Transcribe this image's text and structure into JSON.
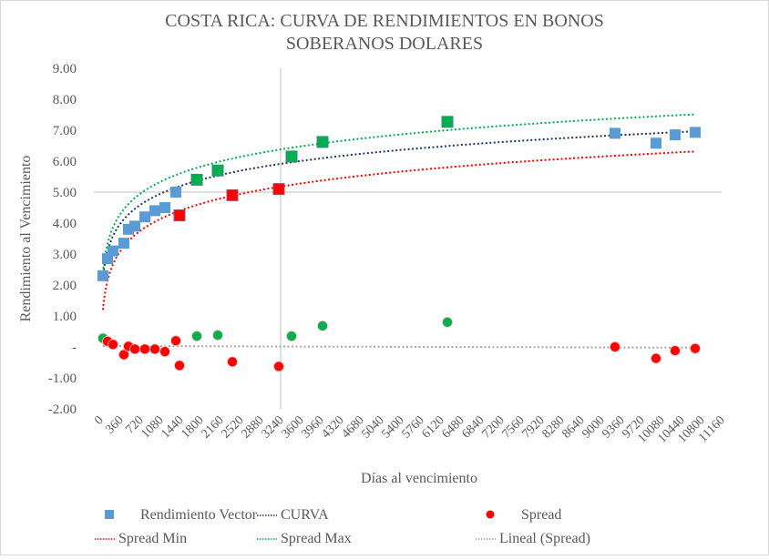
{
  "chart_data": {
    "type": "scatter",
    "title_lines": [
      "COSTA RICA: CURVA DE RENDIMIENTOS EN BONOS",
      "SOBERANOS DOLARES"
    ],
    "xlabel": "Días al vencimiento",
    "ylabel": "Rendimiento al Vencimiento",
    "xlim": [
      0,
      11160
    ],
    "ylim": [
      -2,
      9
    ],
    "x_ticks": [
      0,
      360,
      720,
      1080,
      1440,
      1800,
      2160,
      2520,
      2880,
      3240,
      3600,
      3960,
      4320,
      4680,
      5040,
      5400,
      5760,
      6120,
      6480,
      6840,
      7200,
      7560,
      7920,
      8280,
      8640,
      9000,
      9360,
      9720,
      10080,
      10440,
      10800,
      11160
    ],
    "y_ticks": [
      {
        "v": 9,
        "label": "9.00"
      },
      {
        "v": 8,
        "label": "8.00"
      },
      {
        "v": 7,
        "label": "7.00"
      },
      {
        "v": 6,
        "label": "6.00"
      },
      {
        "v": 5,
        "label": "5.00"
      },
      {
        "v": 4,
        "label": "4.00"
      },
      {
        "v": 3,
        "label": "3.00"
      },
      {
        "v": 2,
        "label": "2.00"
      },
      {
        "v": 1,
        "label": "1.00"
      },
      {
        "v": 0,
        "label": "-"
      },
      {
        "v": -1,
        "label": "-1.00"
      },
      {
        "v": -2,
        "label": "-2.00"
      }
    ],
    "reference_lines": {
      "y": 5.0,
      "x": 3240
    },
    "colors": {
      "blue": "#5b9bd5",
      "green": "#00b050",
      "red": "#ff0000",
      "navy": "#1f3864",
      "gray": "#a6a6a6"
    },
    "series": [
      {
        "name": "Rendimiento Vector",
        "marker": "square",
        "points": [
          {
            "x": 49,
            "y": 2.3,
            "c": "blue"
          },
          {
            "x": 131,
            "y": 2.85,
            "c": "blue"
          },
          {
            "x": 229,
            "y": 3.1,
            "c": "blue"
          },
          {
            "x": 425,
            "y": 3.35,
            "c": "blue"
          },
          {
            "x": 507,
            "y": 3.8,
            "c": "blue"
          },
          {
            "x": 622,
            "y": 3.9,
            "c": "blue"
          },
          {
            "x": 802,
            "y": 4.2,
            "c": "blue"
          },
          {
            "x": 982,
            "y": 4.4,
            "c": "blue"
          },
          {
            "x": 1162,
            "y": 4.5,
            "c": "blue"
          },
          {
            "x": 1358,
            "y": 5.0,
            "c": "blue"
          },
          {
            "x": 1424,
            "y": 4.25,
            "c": "red"
          },
          {
            "x": 1735,
            "y": 5.4,
            "c": "green"
          },
          {
            "x": 2111,
            "y": 5.7,
            "c": "green"
          },
          {
            "x": 2373,
            "y": 4.9,
            "c": "red"
          },
          {
            "x": 3207,
            "y": 5.1,
            "c": "red"
          },
          {
            "x": 3436,
            "y": 6.15,
            "c": "green"
          },
          {
            "x": 3993,
            "y": 6.62,
            "c": "green"
          },
          {
            "x": 6235,
            "y": 7.27,
            "c": "green"
          },
          {
            "x": 9245,
            "y": 6.9,
            "c": "blue"
          },
          {
            "x": 9982,
            "y": 6.58,
            "c": "blue"
          },
          {
            "x": 10325,
            "y": 6.85,
            "c": "blue"
          },
          {
            "x": 10685,
            "y": 6.93,
            "c": "blue"
          }
        ]
      },
      {
        "name": "Spread",
        "marker": "circle",
        "points": [
          {
            "x": 49,
            "y": 0.28,
            "c": "green"
          },
          {
            "x": 131,
            "y": 0.18,
            "c": "red"
          },
          {
            "x": 229,
            "y": 0.08,
            "c": "red"
          },
          {
            "x": 425,
            "y": -0.25,
            "c": "red"
          },
          {
            "x": 507,
            "y": 0.02,
            "c": "red"
          },
          {
            "x": 622,
            "y": -0.07,
            "c": "red"
          },
          {
            "x": 802,
            "y": -0.07,
            "c": "red"
          },
          {
            "x": 982,
            "y": -0.07,
            "c": "red"
          },
          {
            "x": 1162,
            "y": -0.15,
            "c": "red"
          },
          {
            "x": 1358,
            "y": 0.2,
            "c": "red"
          },
          {
            "x": 1424,
            "y": -0.6,
            "c": "red"
          },
          {
            "x": 1735,
            "y": 0.35,
            "c": "green"
          },
          {
            "x": 2111,
            "y": 0.38,
            "c": "green"
          },
          {
            "x": 2373,
            "y": -0.48,
            "c": "red"
          },
          {
            "x": 3207,
            "y": -0.63,
            "c": "red"
          },
          {
            "x": 3436,
            "y": 0.35,
            "c": "green"
          },
          {
            "x": 3993,
            "y": 0.68,
            "c": "green"
          },
          {
            "x": 6235,
            "y": 0.8,
            "c": "green"
          },
          {
            "x": 9245,
            "y": 0.0,
            "c": "red"
          },
          {
            "x": 9982,
            "y": -0.37,
            "c": "red"
          },
          {
            "x": 10325,
            "y": -0.12,
            "c": "red"
          },
          {
            "x": 10685,
            "y": -0.05,
            "c": "red"
          }
        ]
      }
    ],
    "trendlines": [
      {
        "name": "CURVA",
        "type": "log",
        "a": -1.2,
        "b": 0.88,
        "c": "navy",
        "range": [
          49,
          10685
        ]
      },
      {
        "name": "Spread Min",
        "type": "log",
        "a": -2.5,
        "b": 0.95,
        "c": "red",
        "range": [
          49,
          10685
        ]
      },
      {
        "name": "Spread Max",
        "type": "log",
        "a": -1.3,
        "b": 0.95,
        "c": "green",
        "range": [
          49,
          10685
        ]
      },
      {
        "name": "Lineal (Spread)",
        "type": "linear",
        "a": 0.03,
        "b": -5e-06,
        "c": "gray",
        "range": [
          49,
          10685
        ]
      }
    ],
    "legend": {
      "position": "bottom",
      "items": [
        {
          "label": "Rendimiento Vector",
          "kind": "square",
          "c": "blue"
        },
        {
          "label": "CURVA",
          "kind": "dots",
          "c": "navy"
        },
        {
          "label": "Spread",
          "kind": "circle",
          "c": "red"
        },
        {
          "label": "Spread Min",
          "kind": "dots",
          "c": "red"
        },
        {
          "label": "Spread Max",
          "kind": "dots",
          "c": "green"
        },
        {
          "label": "Lineal (Spread)",
          "kind": "dots",
          "c": "gray"
        }
      ]
    }
  }
}
